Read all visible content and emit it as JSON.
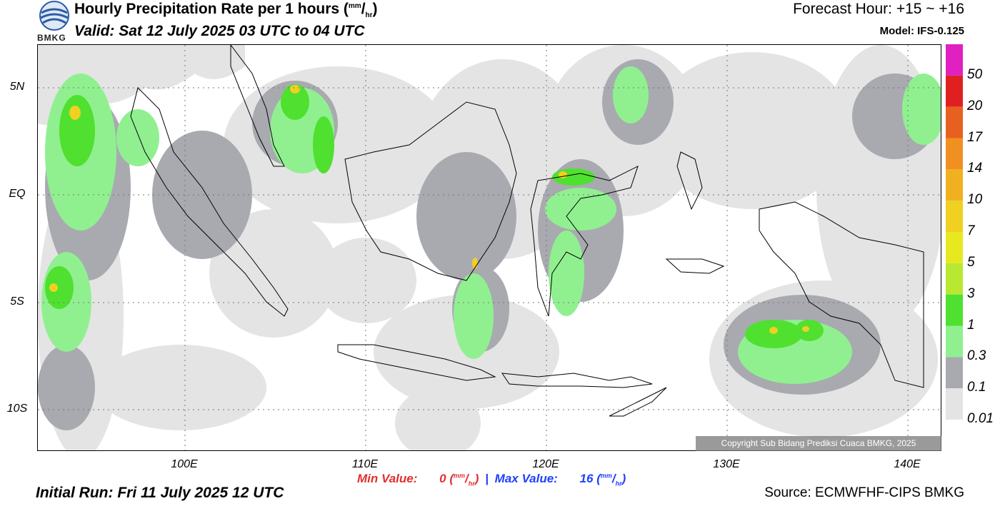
{
  "header": {
    "title_main": "Hourly Precipitation Rate per 1 hours (",
    "title_unit_sup": "mm",
    "title_unit_sep": "/",
    "title_unit_sub": "hr",
    "title_end": ")",
    "valid": "Valid: Sat 12 July 2025 03 UTC to 04 UTC",
    "forecast_hour": "Forecast Hour: +15 ~ +16",
    "model": "Model: IFS-0.125",
    "logo_text": "BMKG"
  },
  "axes": {
    "y_labels": [
      "5N",
      "EQ",
      "5S",
      "10S"
    ],
    "x_labels": [
      "100E",
      "110E",
      "120E",
      "130E",
      "140E"
    ]
  },
  "colorbar": {
    "labels": [
      "50",
      "20",
      "17",
      "14",
      "10",
      "7",
      "5",
      "3",
      "1",
      "0.3",
      "0.1",
      "0.01"
    ],
    "colors": [
      "#e020c0",
      "#e02020",
      "#e86020",
      "#f09020",
      "#f0b020",
      "#f0d020",
      "#e8e820",
      "#b8e830",
      "#50e030",
      "#90f090",
      "#a8aab0",
      "#e4e4e4"
    ]
  },
  "footer": {
    "min_label": "Min Value:",
    "min_value": "0",
    "max_label": "Max Value:",
    "max_value": "16",
    "unit_sup": "mm",
    "unit_sub": "hr",
    "separator": "|",
    "initial_run": "Initial Run: Fri 11 July 2025 12 UTC",
    "source": "Source: ECMWFHF-CIPS BMKG",
    "copyright": "Copyright Sub Bidang Prediksi Cuaca BMKG, 2025"
  }
}
